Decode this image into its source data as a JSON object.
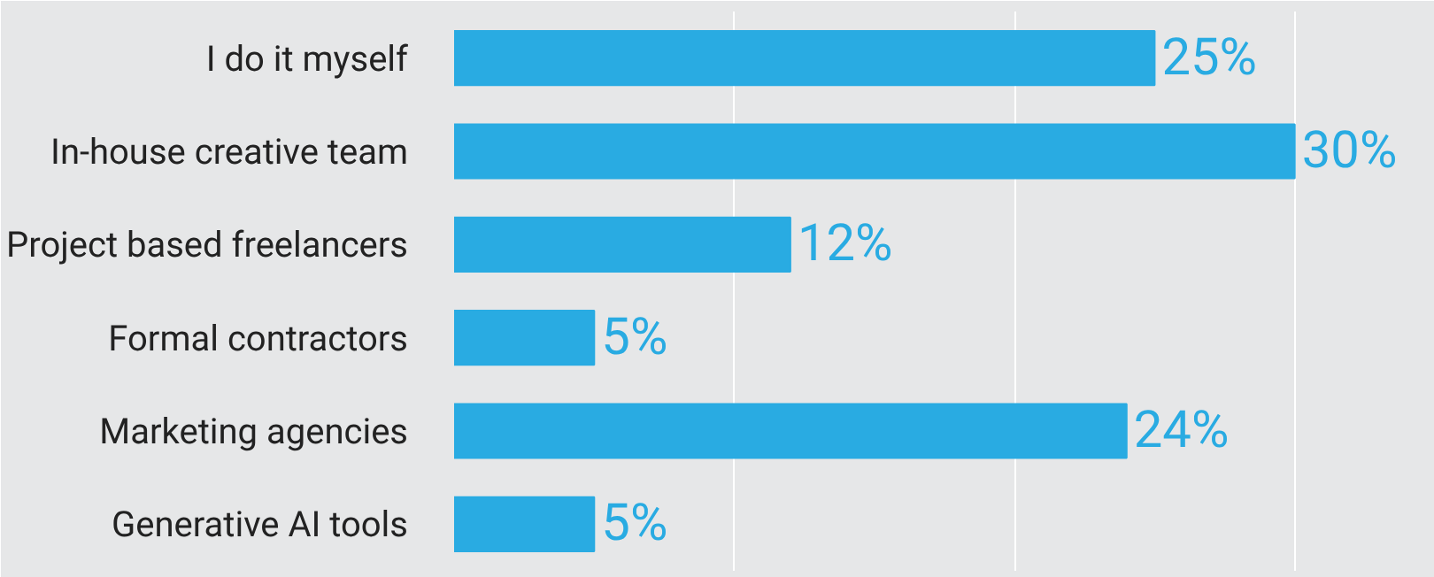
{
  "chart_data": {
    "type": "bar",
    "orientation": "horizontal",
    "categories": [
      "I do it myself",
      "In-house creative team",
      "Project based freelancers",
      "Formal contractors",
      "Marketing agencies",
      "Generative AI tools"
    ],
    "values": [
      25,
      30,
      12,
      5,
      24,
      5
    ],
    "value_labels": [
      "25%",
      "30%",
      "12%",
      "5%",
      "24%",
      "5%"
    ],
    "color": "#29abe2",
    "xlim": [
      0,
      35
    ],
    "xticks": [
      {
        "value": 10,
        "label": null
      },
      {
        "value": 20,
        "label": null
      },
      {
        "value": 30,
        "label": null
      }
    ],
    "grid": "x",
    "tick_labels": "y"
  }
}
